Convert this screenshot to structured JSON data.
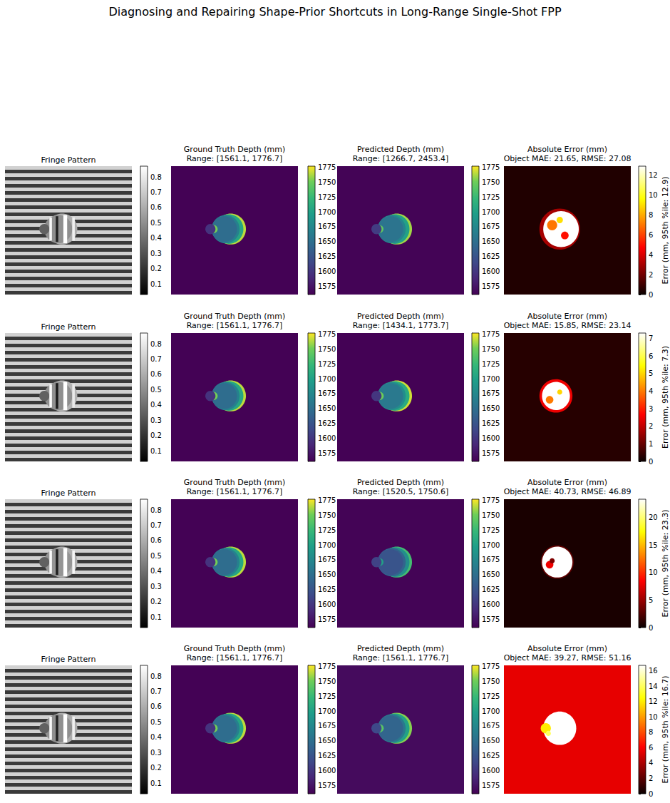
{
  "title": "Diagnosing and Repairing Shape-Prior Shortcuts in Long-Range Single-Shot FPP",
  "chart_data": [
    {
      "type": "image",
      "title": "Fringe Pattern",
      "color": "gray",
      "tick_labels": false,
      "xlim": [
        0,
        100
      ],
      "ylim": [
        0,
        100
      ],
      "bands": [
        0.72,
        0.22,
        0.72,
        0.22,
        0.72,
        0.22,
        0.72,
        0.22,
        0.72,
        0.22,
        0.72,
        0.22,
        0.72,
        0.22,
        0.72,
        0.22,
        0.72,
        0.22,
        0.72,
        0.22,
        0.72,
        0.22,
        0.72,
        0.22,
        0.72,
        0.22,
        0.72,
        0.22,
        0.72,
        0.22,
        0.72,
        0.22,
        0.72,
        0.22,
        0.72,
        0.22
      ],
      "discs": [
        [
          45,
          49,
          12,
          0.6
        ],
        [
          42,
          49,
          11,
          0.5
        ],
        [
          31,
          49,
          4,
          0.35
        ]
      ],
      "rects": [
        [
          35,
          37,
          40,
          58,
          0.85
        ],
        [
          46,
          49,
          38,
          60,
          0.87
        ],
        [
          53,
          55,
          40,
          58,
          0.82
        ],
        [
          40,
          42,
          39,
          59,
          0.15
        ]
      ],
      "colorbar": {
        "range": [
          0.03,
          0.87
        ],
        "ticks": [
          0.1,
          0.2,
          0.3,
          0.4,
          0.5,
          0.6,
          0.7,
          0.8
        ]
      }
    },
    {
      "type": "image",
      "title": "Ground Truth Depth (mm)",
      "subtitle": "Range: [1561.1, 1776.7]",
      "color": "viridis",
      "tick_labels": false,
      "xlim": [
        0,
        100
      ],
      "ylim": [
        0,
        100
      ],
      "background": 1562,
      "discs": [
        [
          47,
          49,
          12,
          1765
        ],
        [
          45.5,
          49,
          11.5,
          1705
        ],
        [
          43,
          49,
          11,
          1668
        ],
        [
          42,
          49,
          10,
          1648
        ],
        [
          33.5,
          49,
          3.2,
          1752
        ],
        [
          31,
          49,
          4,
          1598
        ]
      ],
      "colorbar": {
        "range": [
          1561.1,
          1776.7
        ],
        "ticks": [
          1575,
          1600,
          1625,
          1650,
          1675,
          1700,
          1725,
          1750,
          1775
        ]
      }
    },
    {
      "type": "image",
      "title": "Predicted Depth (mm)",
      "subtitle": "Range: [1266.7, 2453.4]",
      "color": "viridis",
      "tick_labels": false,
      "xlim": [
        0,
        100
      ],
      "ylim": [
        0,
        100
      ],
      "background": 1563,
      "discs": [
        [
          47,
          49,
          12,
          1760
        ],
        [
          45.5,
          49,
          11.5,
          1700
        ],
        [
          43,
          49,
          11,
          1672
        ],
        [
          42,
          49,
          10,
          1655
        ],
        [
          33.5,
          49,
          3,
          1745
        ],
        [
          31,
          49,
          4,
          1605
        ]
      ],
      "colorbar": {
        "range": [
          1561.1,
          1776.7
        ],
        "ticks": [
          1575,
          1600,
          1625,
          1650,
          1675,
          1700,
          1725,
          1750,
          1775
        ]
      }
    },
    {
      "type": "image",
      "title": "Absolute Error (mm)",
      "subtitle": "Object MAE: 21.65, RMSE: 27.08",
      "color": "hot",
      "tick_labels": false,
      "xlim": [
        0,
        100
      ],
      "ylim": [
        0,
        100
      ],
      "background": 0.4,
      "discs": [
        [
          44,
          49,
          16,
          3
        ],
        [
          45,
          49,
          14,
          12.9
        ],
        [
          38,
          46,
          4,
          7
        ],
        [
          48,
          54,
          3,
          5
        ],
        [
          44,
          42,
          2.5,
          9
        ]
      ],
      "colorbar": {
        "range": [
          0,
          12.9
        ],
        "ticks": [
          0,
          2,
          4,
          6,
          8,
          10,
          12
        ],
        "label": "Error (mm, 95th %ile: 12.9)"
      }
    },
    {
      "type": "image",
      "title": "Fringe Pattern",
      "color": "gray",
      "tick_labels": false,
      "xlim": [
        0,
        100
      ],
      "ylim": [
        0,
        100
      ],
      "bands": [
        0.72,
        0.22,
        0.72,
        0.22,
        0.72,
        0.22,
        0.72,
        0.22,
        0.72,
        0.22,
        0.72,
        0.22,
        0.72,
        0.22,
        0.72,
        0.22,
        0.72,
        0.22,
        0.72,
        0.22,
        0.72,
        0.22,
        0.72,
        0.22,
        0.72,
        0.22,
        0.72,
        0.22,
        0.72,
        0.22,
        0.72,
        0.22,
        0.72,
        0.22,
        0.72,
        0.22
      ],
      "discs": [
        [
          45,
          49,
          12,
          0.62
        ],
        [
          42,
          49,
          11,
          0.5
        ],
        [
          31,
          49,
          4,
          0.35
        ]
      ],
      "rects": [
        [
          35,
          37,
          40,
          58,
          0.86
        ],
        [
          46,
          49,
          38,
          60,
          0.87
        ],
        [
          53,
          55,
          40,
          58,
          0.8
        ],
        [
          40,
          42,
          39,
          59,
          0.12
        ]
      ],
      "colorbar": {
        "range": [
          0.03,
          0.87
        ],
        "ticks": [
          0.1,
          0.2,
          0.3,
          0.4,
          0.5,
          0.6,
          0.7,
          0.8
        ]
      }
    },
    {
      "type": "image",
      "title": "Ground Truth Depth (mm)",
      "subtitle": "Range: [1561.1, 1776.7]",
      "color": "viridis",
      "tick_labels": false,
      "xlim": [
        0,
        100
      ],
      "ylim": [
        0,
        100
      ],
      "background": 1562,
      "discs": [
        [
          47,
          49,
          12,
          1765
        ],
        [
          45.5,
          49,
          11.5,
          1705
        ],
        [
          43,
          49,
          11,
          1668
        ],
        [
          42,
          49,
          10,
          1648
        ],
        [
          33.5,
          49,
          3.2,
          1752
        ],
        [
          31,
          49,
          4,
          1598
        ]
      ],
      "colorbar": {
        "range": [
          1561.1,
          1776.7
        ],
        "ticks": [
          1575,
          1600,
          1625,
          1650,
          1675,
          1700,
          1725,
          1750,
          1775
        ]
      }
    },
    {
      "type": "image",
      "title": "Predicted Depth (mm)",
      "subtitle": "Range: [1434.1, 1773.7]",
      "color": "viridis",
      "tick_labels": false,
      "xlim": [
        0,
        100
      ],
      "ylim": [
        0,
        100
      ],
      "background": 1562,
      "discs": [
        [
          47,
          49,
          12,
          1768
        ],
        [
          45.5,
          49,
          11.5,
          1710
        ],
        [
          43,
          49,
          11,
          1680
        ],
        [
          42,
          49,
          10,
          1660
        ],
        [
          33.5,
          49,
          3.2,
          1750
        ],
        [
          31,
          49,
          4,
          1600
        ]
      ],
      "colorbar": {
        "range": [
          1561.1,
          1776.7
        ],
        "ticks": [
          1575,
          1600,
          1625,
          1650,
          1675,
          1700,
          1725,
          1750,
          1775
        ]
      }
    },
    {
      "type": "image",
      "title": "Absolute Error (mm)",
      "subtitle": "Object MAE: 15.85, RMSE: 23.14",
      "color": "hot",
      "tick_labels": false,
      "xlim": [
        0,
        100
      ],
      "ylim": [
        0,
        100
      ],
      "background": 0.3,
      "discs": [
        [
          41,
          49,
          13,
          2.5
        ],
        [
          41,
          49,
          11,
          7.3
        ],
        [
          36,
          52,
          3,
          4
        ],
        [
          44,
          46,
          2,
          5
        ]
      ],
      "colorbar": {
        "range": [
          0,
          7.3
        ],
        "ticks": [
          0,
          1,
          2,
          3,
          4,
          5,
          6,
          7
        ],
        "label": "Error (mm, 95th %ile: 7.3)"
      }
    },
    {
      "type": "image",
      "title": "Fringe Pattern",
      "color": "gray",
      "tick_labels": false,
      "xlim": [
        0,
        100
      ],
      "ylim": [
        0,
        100
      ],
      "bands": [
        0.72,
        0.22,
        0.72,
        0.22,
        0.72,
        0.22,
        0.72,
        0.22,
        0.72,
        0.22,
        0.72,
        0.22,
        0.72,
        0.22,
        0.72,
        0.22,
        0.72,
        0.22,
        0.72,
        0.22,
        0.72,
        0.22,
        0.72,
        0.22,
        0.72,
        0.22,
        0.72,
        0.22,
        0.72,
        0.22,
        0.72,
        0.22,
        0.72,
        0.22,
        0.72,
        0.22
      ],
      "discs": [
        [
          45,
          49,
          12,
          0.6
        ],
        [
          42,
          49,
          11,
          0.52
        ],
        [
          31,
          49,
          4,
          0.35
        ]
      ],
      "rects": [
        [
          35,
          37,
          40,
          58,
          0.85
        ],
        [
          46,
          49,
          38,
          60,
          0.87
        ],
        [
          53,
          55,
          40,
          58,
          0.84
        ],
        [
          40,
          42,
          39,
          59,
          0.14
        ]
      ],
      "colorbar": {
        "range": [
          0.03,
          0.87
        ],
        "ticks": [
          0.1,
          0.2,
          0.3,
          0.4,
          0.5,
          0.6,
          0.7,
          0.8
        ]
      }
    },
    {
      "type": "image",
      "title": "Ground Truth Depth (mm)",
      "subtitle": "Range: [1561.1, 1776.7]",
      "color": "viridis",
      "tick_labels": false,
      "xlim": [
        0,
        100
      ],
      "ylim": [
        0,
        100
      ],
      "background": 1562,
      "discs": [
        [
          47,
          49,
          12,
          1765
        ],
        [
          45.5,
          49,
          11.5,
          1705
        ],
        [
          43,
          49,
          11,
          1668
        ],
        [
          42,
          49,
          10,
          1648
        ],
        [
          33.5,
          49,
          3.2,
          1752
        ],
        [
          31,
          49,
          4,
          1598
        ]
      ],
      "colorbar": {
        "range": [
          1561.1,
          1776.7
        ],
        "ticks": [
          1575,
          1600,
          1625,
          1650,
          1675,
          1700,
          1725,
          1750,
          1775
        ]
      }
    },
    {
      "type": "image",
      "title": "Predicted Depth (mm)",
      "subtitle": "Range: [1520.5, 1750.6]",
      "color": "viridis",
      "tick_labels": false,
      "xlim": [
        0,
        100
      ],
      "ylim": [
        0,
        100
      ],
      "background": 1563,
      "discs": [
        [
          47,
          49,
          12,
          1730
        ],
        [
          45.5,
          49,
          11.5,
          1680
        ],
        [
          43,
          49,
          11,
          1640
        ],
        [
          42,
          49,
          10,
          1625
        ],
        [
          33.5,
          49,
          3,
          1700
        ],
        [
          31,
          49,
          4,
          1610
        ]
      ],
      "colorbar": {
        "range": [
          1561.1,
          1776.7
        ],
        "ticks": [
          1575,
          1600,
          1625,
          1650,
          1675,
          1700,
          1725,
          1750,
          1775
        ]
      }
    },
    {
      "type": "image",
      "title": "Absolute Error (mm)",
      "subtitle": "Object MAE: 40.73, RMSE: 46.89",
      "color": "hot",
      "tick_labels": false,
      "xlim": [
        0,
        100
      ],
      "ylim": [
        0,
        100
      ],
      "background": 0.5,
      "discs": [
        [
          42,
          49,
          13,
          3
        ],
        [
          42,
          49,
          12,
          23.3
        ],
        [
          36,
          51,
          3,
          8
        ],
        [
          38,
          48,
          2,
          4
        ]
      ],
      "colorbar": {
        "range": [
          0,
          23.3
        ],
        "ticks": [
          0,
          5,
          10,
          15,
          20
        ],
        "label": "Error (mm, 95th %ile: 23.3)"
      }
    },
    {
      "type": "image",
      "title": "Fringe Pattern",
      "color": "gray",
      "tick_labels": false,
      "xlim": [
        0,
        100
      ],
      "ylim": [
        0,
        100
      ],
      "bands": [
        0.72,
        0.22,
        0.72,
        0.22,
        0.72,
        0.22,
        0.72,
        0.22,
        0.72,
        0.22,
        0.72,
        0.22,
        0.72,
        0.22,
        0.72,
        0.22,
        0.72,
        0.22,
        0.72,
        0.22,
        0.72,
        0.22,
        0.72,
        0.22,
        0.72,
        0.22,
        0.72,
        0.22,
        0.72,
        0.22,
        0.72,
        0.22,
        0.72,
        0.22,
        0.72,
        0.22
      ],
      "discs": [
        [
          45,
          49,
          12,
          0.6
        ],
        [
          42,
          49,
          11,
          0.5
        ],
        [
          31,
          49,
          4,
          0.35
        ]
      ],
      "rects": [
        [
          35,
          37,
          40,
          58,
          0.85
        ],
        [
          46,
          49,
          38,
          60,
          0.87
        ],
        [
          53,
          55,
          40,
          58,
          0.82
        ],
        [
          40,
          42,
          39,
          59,
          0.15
        ]
      ],
      "colorbar": {
        "range": [
          0.03,
          0.87
        ],
        "ticks": [
          0.1,
          0.2,
          0.3,
          0.4,
          0.5,
          0.6,
          0.7,
          0.8
        ]
      }
    },
    {
      "type": "image",
      "title": "Ground Truth Depth (mm)",
      "subtitle": "Range: [1561.1, 1776.7]",
      "color": "viridis",
      "tick_labels": false,
      "xlim": [
        0,
        100
      ],
      "ylim": [
        0,
        100
      ],
      "background": 1562,
      "discs": [
        [
          47,
          49,
          12,
          1765
        ],
        [
          45.5,
          49,
          11.5,
          1705
        ],
        [
          43,
          49,
          11,
          1668
        ],
        [
          42,
          49,
          10,
          1648
        ],
        [
          33.5,
          49,
          3.2,
          1752
        ],
        [
          31,
          49,
          4,
          1598
        ]
      ],
      "colorbar": {
        "range": [
          1561.1,
          1776.7
        ],
        "ticks": [
          1575,
          1600,
          1625,
          1650,
          1675,
          1700,
          1725,
          1750,
          1775
        ]
      }
    },
    {
      "type": "image",
      "title": "Predicted Depth (mm)",
      "subtitle": "Range: [1561.1, 1776.7]",
      "color": "viridis",
      "tick_labels": false,
      "xlim": [
        0,
        100
      ],
      "ylim": [
        0,
        100
      ],
      "background": 1568,
      "discs": [
        [
          47,
          49,
          12,
          1755
        ],
        [
          45.5,
          49,
          11.5,
          1700
        ],
        [
          43,
          49,
          11,
          1660
        ],
        [
          42,
          49,
          10,
          1640
        ],
        [
          33.5,
          49,
          3.2,
          1740
        ],
        [
          31,
          49,
          4,
          1615
        ]
      ],
      "colorbar": {
        "range": [
          1561.1,
          1776.7
        ],
        "ticks": [
          1575,
          1600,
          1625,
          1650,
          1675,
          1700,
          1725,
          1750,
          1775
        ]
      }
    },
    {
      "type": "image",
      "title": "Absolute Error (mm)",
      "subtitle": "Object MAE: 39.27, RMSE: 51.16",
      "color": "hot",
      "tick_labels": false,
      "xlim": [
        0,
        100
      ],
      "ylim": [
        0,
        100
      ],
      "background": 5.5,
      "discs": [
        [
          44,
          49,
          13,
          16.7
        ],
        [
          33,
          49,
          4,
          12
        ],
        [
          35,
          53,
          2,
          14
        ]
      ],
      "colorbar": {
        "range": [
          0,
          16.7
        ],
        "ticks": [
          0,
          2,
          4,
          6,
          8,
          10,
          12,
          14,
          16
        ],
        "label": "Error (mm, 95th %ile: 16.7)"
      }
    }
  ]
}
